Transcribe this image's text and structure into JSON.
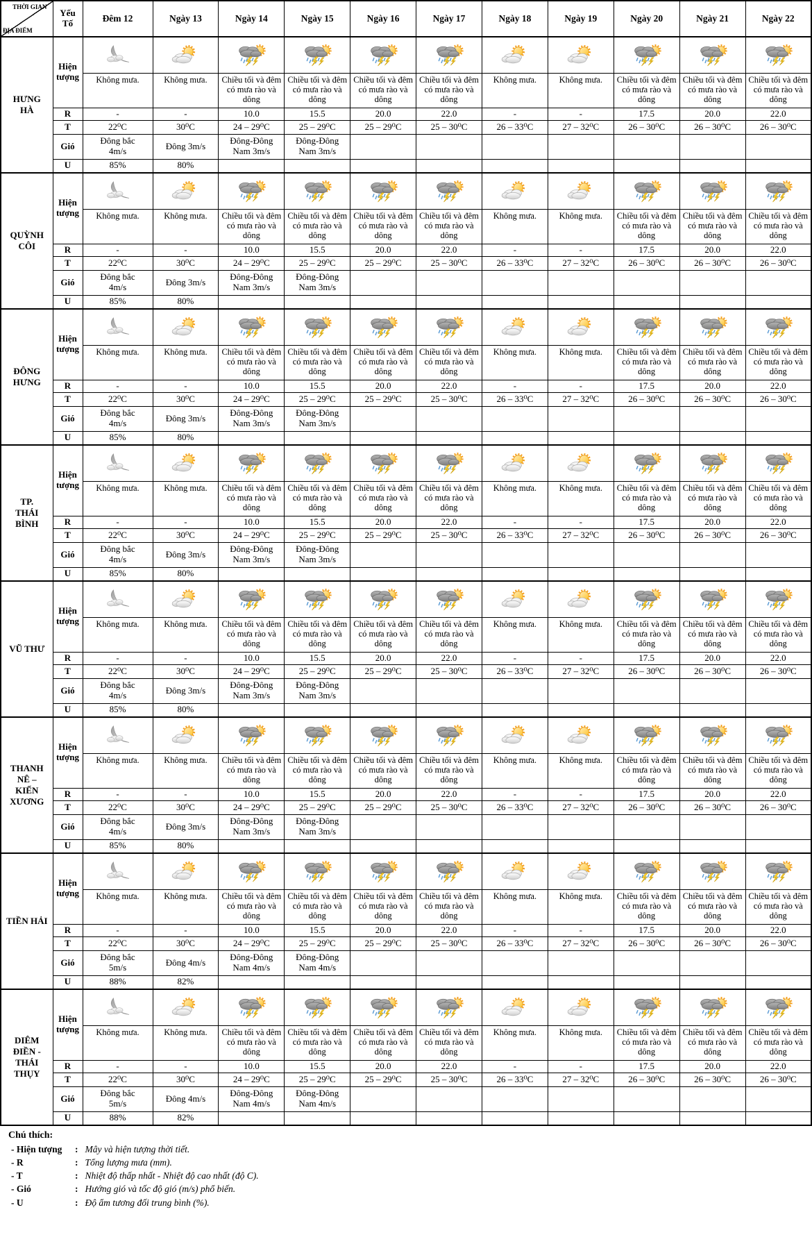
{
  "header": {
    "corner_top": "THỜI GIAN",
    "corner_bottom": "ĐỊA ĐIỂM",
    "factor_label": "Yếu Tố",
    "days": [
      "Đêm 12",
      "Ngày 13",
      "Ngày 14",
      "Ngày 15",
      "Ngày 16",
      "Ngày 17",
      "Ngày 18",
      "Ngày 19",
      "Ngày 20",
      "Ngày 21",
      "Ngày 22"
    ]
  },
  "row_labels": {
    "phenomenon": "Hiện tượng",
    "rain": "R",
    "temp": "T",
    "wind": "Gió",
    "humidity": "U"
  },
  "icon_pattern": [
    "moon-cloud",
    "sun-cloud",
    "storm",
    "storm",
    "storm",
    "storm",
    "sun-cloud",
    "sun-cloud",
    "storm",
    "storm",
    "storm"
  ],
  "colors": {
    "border": "#000000",
    "text": "#000000",
    "background": "#ffffff",
    "sun": "#ffc125",
    "sun_ray": "#f59f1e",
    "cloud_light": "#e8e8e8",
    "cloud_dark": "#8a8a8a",
    "rain_drop": "#5b9bd5",
    "lightning": "#ffd83d"
  },
  "locations": [
    {
      "name": "HƯNG\nHÀ",
      "phenomenon": [
        "Không mưa.",
        "Không mưa.",
        "Chiều tối và đêm có mưa rào và dông",
        "Chiều tối và đêm có mưa rào và dông",
        "Chiều tối và đêm có mưa rào và dông",
        "Chiều tối và đêm có mưa rào và dông",
        "Không mưa.",
        "Không mưa.",
        "Chiều tối và đêm có mưa rào và dông",
        "Chiều tối và đêm có mưa rào và dông",
        "Chiều tối và đêm có mưa rào và dông"
      ],
      "rain": [
        "-",
        "-",
        "10.0",
        "15.5",
        "20.0",
        "22.0",
        "-",
        "-",
        "17.5",
        "20.0",
        "22.0"
      ],
      "temp": [
        "22⁰C",
        "30⁰C",
        "24 – 29⁰C",
        "25 – 29⁰C",
        "25 – 29⁰C",
        "25 – 30⁰C",
        "26 – 33⁰C",
        "27 – 32⁰C",
        "26 – 30⁰C",
        "26 – 30⁰C",
        "26 – 30⁰C"
      ],
      "wind": [
        "Đông bắc\n4m/s",
        "Đông 3m/s",
        "Đông-Đông\nNam 3m/s",
        "Đông-Đông\nNam 3m/s",
        "",
        "",
        "",
        "",
        "",
        "",
        ""
      ],
      "humidity": [
        "85%",
        "80%",
        "",
        "",
        "",
        "",
        "",
        "",
        "",
        "",
        ""
      ]
    },
    {
      "name": "QUỲNH\nCÔI",
      "phenomenon": [
        "Không mưa.",
        "Không mưa.",
        "Chiều tối và đêm có mưa rào và dông",
        "Chiều tối và đêm có mưa rào và dông",
        "Chiều tối và đêm có mưa rào và dông",
        "Chiều tối và đêm có mưa rào và dông",
        "Không mưa.",
        "Không mưa.",
        "Chiều tối và đêm có mưa rào và dông",
        "Chiều tối và đêm có mưa rào và dông",
        "Chiều tối và đêm có mưa rào và dông"
      ],
      "rain": [
        "-",
        "-",
        "10.0",
        "15.5",
        "20.0",
        "22.0",
        "-",
        "-",
        "17.5",
        "20.0",
        "22.0"
      ],
      "temp": [
        "22⁰C",
        "30⁰C",
        "24 – 29⁰C",
        "25 – 29⁰C",
        "25 – 29⁰C",
        "25 – 30⁰C",
        "26 – 33⁰C",
        "27 – 32⁰C",
        "26 – 30⁰C",
        "26 – 30⁰C",
        "26 – 30⁰C"
      ],
      "wind": [
        "Đông bắc\n4m/s",
        "Đông 3m/s",
        "Đông-Đông\nNam 3m/s",
        "Đông-Đông\nNam 3m/s",
        "",
        "",
        "",
        "",
        "",
        "",
        ""
      ],
      "humidity": [
        "85%",
        "80%",
        "",
        "",
        "",
        "",
        "",
        "",
        "",
        "",
        ""
      ]
    },
    {
      "name": "ĐÔNG\nHƯNG",
      "phenomenon": [
        "Không mưa.",
        "Không mưa.",
        "Chiều tối và đêm có mưa rào và dông",
        "Chiều tối và đêm có mưa rào và dông",
        "Chiều tối và đêm có mưa rào và dông",
        "Chiều tối và đêm có mưa rào và dông",
        "Không mưa.",
        "Không mưa.",
        "Chiều tối và đêm có mưa rào và dông",
        "Chiều tối và đêm có mưa rào và dông",
        "Chiều tối và đêm có mưa rào và dông"
      ],
      "rain": [
        "-",
        "-",
        "10.0",
        "15.5",
        "20.0",
        "22.0",
        "-",
        "-",
        "17.5",
        "20.0",
        "22.0"
      ],
      "temp": [
        "22⁰C",
        "30⁰C",
        "24 – 29⁰C",
        "25 – 29⁰C",
        "25 – 29⁰C",
        "25 – 30⁰C",
        "26 – 33⁰C",
        "27 – 32⁰C",
        "26 – 30⁰C",
        "26 – 30⁰C",
        "26 – 30⁰C"
      ],
      "wind": [
        "Đông bắc\n4m/s",
        "Đông 3m/s",
        "Đông-Đông\nNam 3m/s",
        "Đông-Đông\nNam 3m/s",
        "",
        "",
        "",
        "",
        "",
        "",
        ""
      ],
      "humidity": [
        "85%",
        "80%",
        "",
        "",
        "",
        "",
        "",
        "",
        "",
        "",
        ""
      ]
    },
    {
      "name": "TP.\nTHÁI\nBÌNH",
      "phenomenon": [
        "Không mưa.",
        "Không mưa.",
        "Chiều tối và đêm có mưa rào và dông",
        "Chiều tối và đêm có mưa rào và dông",
        "Chiều tối và đêm có mưa rào và dông",
        "Chiều tối và đêm có mưa rào và dông",
        "Không mưa.",
        "Không mưa.",
        "Chiều tối và đêm có mưa rào và dông",
        "Chiều tối và đêm có mưa rào và dông",
        "Chiều tối và đêm có mưa rào và dông"
      ],
      "rain": [
        "-",
        "-",
        "10.0",
        "15.5",
        "20.0",
        "22.0",
        "-",
        "-",
        "17.5",
        "20.0",
        "22.0"
      ],
      "temp": [
        "22⁰C",
        "30⁰C",
        "24 – 29⁰C",
        "25 – 29⁰C",
        "25 – 29⁰C",
        "25 – 30⁰C",
        "26 – 33⁰C",
        "27 – 32⁰C",
        "26 – 30⁰C",
        "26 – 30⁰C",
        "26 – 30⁰C"
      ],
      "wind": [
        "Đông bắc\n4m/s",
        "Đông 3m/s",
        "Đông-Đông\nNam 3m/s",
        "Đông-Đông\nNam 3m/s",
        "",
        "",
        "",
        "",
        "",
        "",
        ""
      ],
      "humidity": [
        "85%",
        "80%",
        "",
        "",
        "",
        "",
        "",
        "",
        "",
        "",
        ""
      ]
    },
    {
      "name": "VŨ THƯ",
      "phenomenon": [
        "Không mưa.",
        "Không mưa.",
        "Chiều tối và đêm có mưa rào và dông",
        "Chiều tối và đêm có mưa rào và dông",
        "Chiều tối và đêm có mưa rào và dông",
        "Chiều tối và đêm có mưa rào và dông",
        "Không mưa.",
        "Không mưa.",
        "Chiều tối và đêm có mưa rào và dông",
        "Chiều tối và đêm có mưa rào và dông",
        "Chiều tối và đêm có mưa rào và dông"
      ],
      "rain": [
        "-",
        "-",
        "10.0",
        "15.5",
        "20.0",
        "22.0",
        "-",
        "-",
        "17.5",
        "20.0",
        "22.0"
      ],
      "temp": [
        "22⁰C",
        "30⁰C",
        "24 – 29⁰C",
        "25 – 29⁰C",
        "25 – 29⁰C",
        "25 – 30⁰C",
        "26 – 33⁰C",
        "27 – 32⁰C",
        "26 – 30⁰C",
        "26 – 30⁰C",
        "26 – 30⁰C"
      ],
      "wind": [
        "Đông bắc\n4m/s",
        "Đông 3m/s",
        "Đông-Đông\nNam 3m/s",
        "Đông-Đông\nNam 3m/s",
        "",
        "",
        "",
        "",
        "",
        "",
        ""
      ],
      "humidity": [
        "85%",
        "80%",
        "",
        "",
        "",
        "",
        "",
        "",
        "",
        "",
        ""
      ]
    },
    {
      "name": "THANH\nNÊ –\nKIẾN\nXƯƠNG",
      "phenomenon": [
        "Không mưa.",
        "Không mưa.",
        "Chiều tối và đêm có mưa rào và dông",
        "Chiều tối và đêm có mưa rào và dông",
        "Chiều tối và đêm có mưa rào và dông",
        "Chiều tối và đêm có mưa rào và dông",
        "Không mưa.",
        "Không mưa.",
        "Chiều tối và đêm có mưa rào và dông",
        "Chiều tối và đêm có mưa rào và dông",
        "Chiều tối và đêm có mưa rào và dông"
      ],
      "rain": [
        "-",
        "-",
        "10.0",
        "15.5",
        "20.0",
        "22.0",
        "-",
        "-",
        "17.5",
        "20.0",
        "22.0"
      ],
      "temp": [
        "22⁰C",
        "30⁰C",
        "24 – 29⁰C",
        "25 – 29⁰C",
        "25 – 29⁰C",
        "25 – 30⁰C",
        "26 – 33⁰C",
        "27 – 32⁰C",
        "26 – 30⁰C",
        "26 – 30⁰C",
        "26 – 30⁰C"
      ],
      "wind": [
        "Đông bắc\n4m/s",
        "Đông 3m/s",
        "Đông-Đông\nNam 3m/s",
        "Đông-Đông\nNam 3m/s",
        "",
        "",
        "",
        "",
        "",
        "",
        ""
      ],
      "humidity": [
        "85%",
        "80%",
        "",
        "",
        "",
        "",
        "",
        "",
        "",
        "",
        ""
      ]
    },
    {
      "name": "TIỀN HẢI",
      "phenomenon": [
        "Không mưa.",
        "Không mưa.",
        "Chiều tối và đêm có mưa rào và dông",
        "Chiều tối và đêm có mưa rào và dông",
        "Chiều tối và đêm có mưa rào và dông",
        "Chiều tối và đêm có mưa rào và dông",
        "Không mưa.",
        "Không mưa.",
        "Chiều tối và đêm có mưa rào và dông",
        "Chiều tối và đêm có mưa rào và dông",
        "Chiều tối và đêm có mưa rào và dông"
      ],
      "rain": [
        "-",
        "-",
        "10.0",
        "15.5",
        "20.0",
        "22.0",
        "-",
        "-",
        "17.5",
        "20.0",
        "22.0"
      ],
      "temp": [
        "22⁰C",
        "30⁰C",
        "24 – 29⁰C",
        "25 – 29⁰C",
        "25 – 29⁰C",
        "25 – 30⁰C",
        "26 – 33⁰C",
        "27 – 32⁰C",
        "26 – 30⁰C",
        "26 – 30⁰C",
        "26 – 30⁰C"
      ],
      "wind": [
        "Đông bắc\n5m/s",
        "Đông 4m/s",
        "Đông-Đông\nNam 4m/s",
        "Đông-Đông\nNam 4m/s",
        "",
        "",
        "",
        "",
        "",
        "",
        ""
      ],
      "humidity": [
        "88%",
        "82%",
        "",
        "",
        "",
        "",
        "",
        "",
        "",
        "",
        ""
      ]
    },
    {
      "name": "DIÊM\nĐIỀN -\nTHÁI\nTHỤY",
      "phenomenon": [
        "Không mưa.",
        "Không mưa.",
        "Chiều tối và đêm có mưa rào và dông",
        "Chiều tối và đêm có mưa rào và dông",
        "Chiều tối và đêm có mưa rào và dông",
        "Chiều tối và đêm có mưa rào và dông",
        "Không mưa.",
        "Không mưa.",
        "Chiều tối và đêm có mưa rào và dông",
        "Chiều tối và đêm có mưa rào và dông",
        "Chiều tối và đêm có mưa rào và dông"
      ],
      "rain": [
        "-",
        "-",
        "10.0",
        "15.5",
        "20.0",
        "22.0",
        "-",
        "-",
        "17.5",
        "20.0",
        "22.0"
      ],
      "temp": [
        "22⁰C",
        "30⁰C",
        "24 – 29⁰C",
        "25 – 29⁰C",
        "25 – 29⁰C",
        "25 – 30⁰C",
        "26 – 33⁰C",
        "27 – 32⁰C",
        "26 – 30⁰C",
        "26 – 30⁰C",
        "26 – 30⁰C"
      ],
      "wind": [
        "Đông bắc\n5m/s",
        "Đông 4m/s",
        "Đông-Đông\nNam 4m/s",
        "Đông-Đông\nNam 4m/s",
        "",
        "",
        "",
        "",
        "",
        "",
        ""
      ],
      "humidity": [
        "88%",
        "82%",
        "",
        "",
        "",
        "",
        "",
        "",
        "",
        "",
        ""
      ]
    }
  ],
  "legend": {
    "title": "Chú thích:",
    "items": [
      {
        "label": "- Hiện tượng",
        "colon": ":",
        "text": "Mây và hiện tượng thời tiết."
      },
      {
        "label": "- R",
        "colon": ":",
        "text": "Tổng lượng mưa (mm)."
      },
      {
        "label": "- T",
        "colon": ":",
        "text": "Nhiệt độ thấp nhất - Nhiệt độ cao nhất (độ C)."
      },
      {
        "label": "- Gió",
        "colon": ":",
        "text": "Hướng gió và tốc độ gió (m/s) phổ biến."
      },
      {
        "label": "- U",
        "colon": ":",
        "text": "Độ ẩm tương đối trung bình (%)."
      }
    ]
  }
}
